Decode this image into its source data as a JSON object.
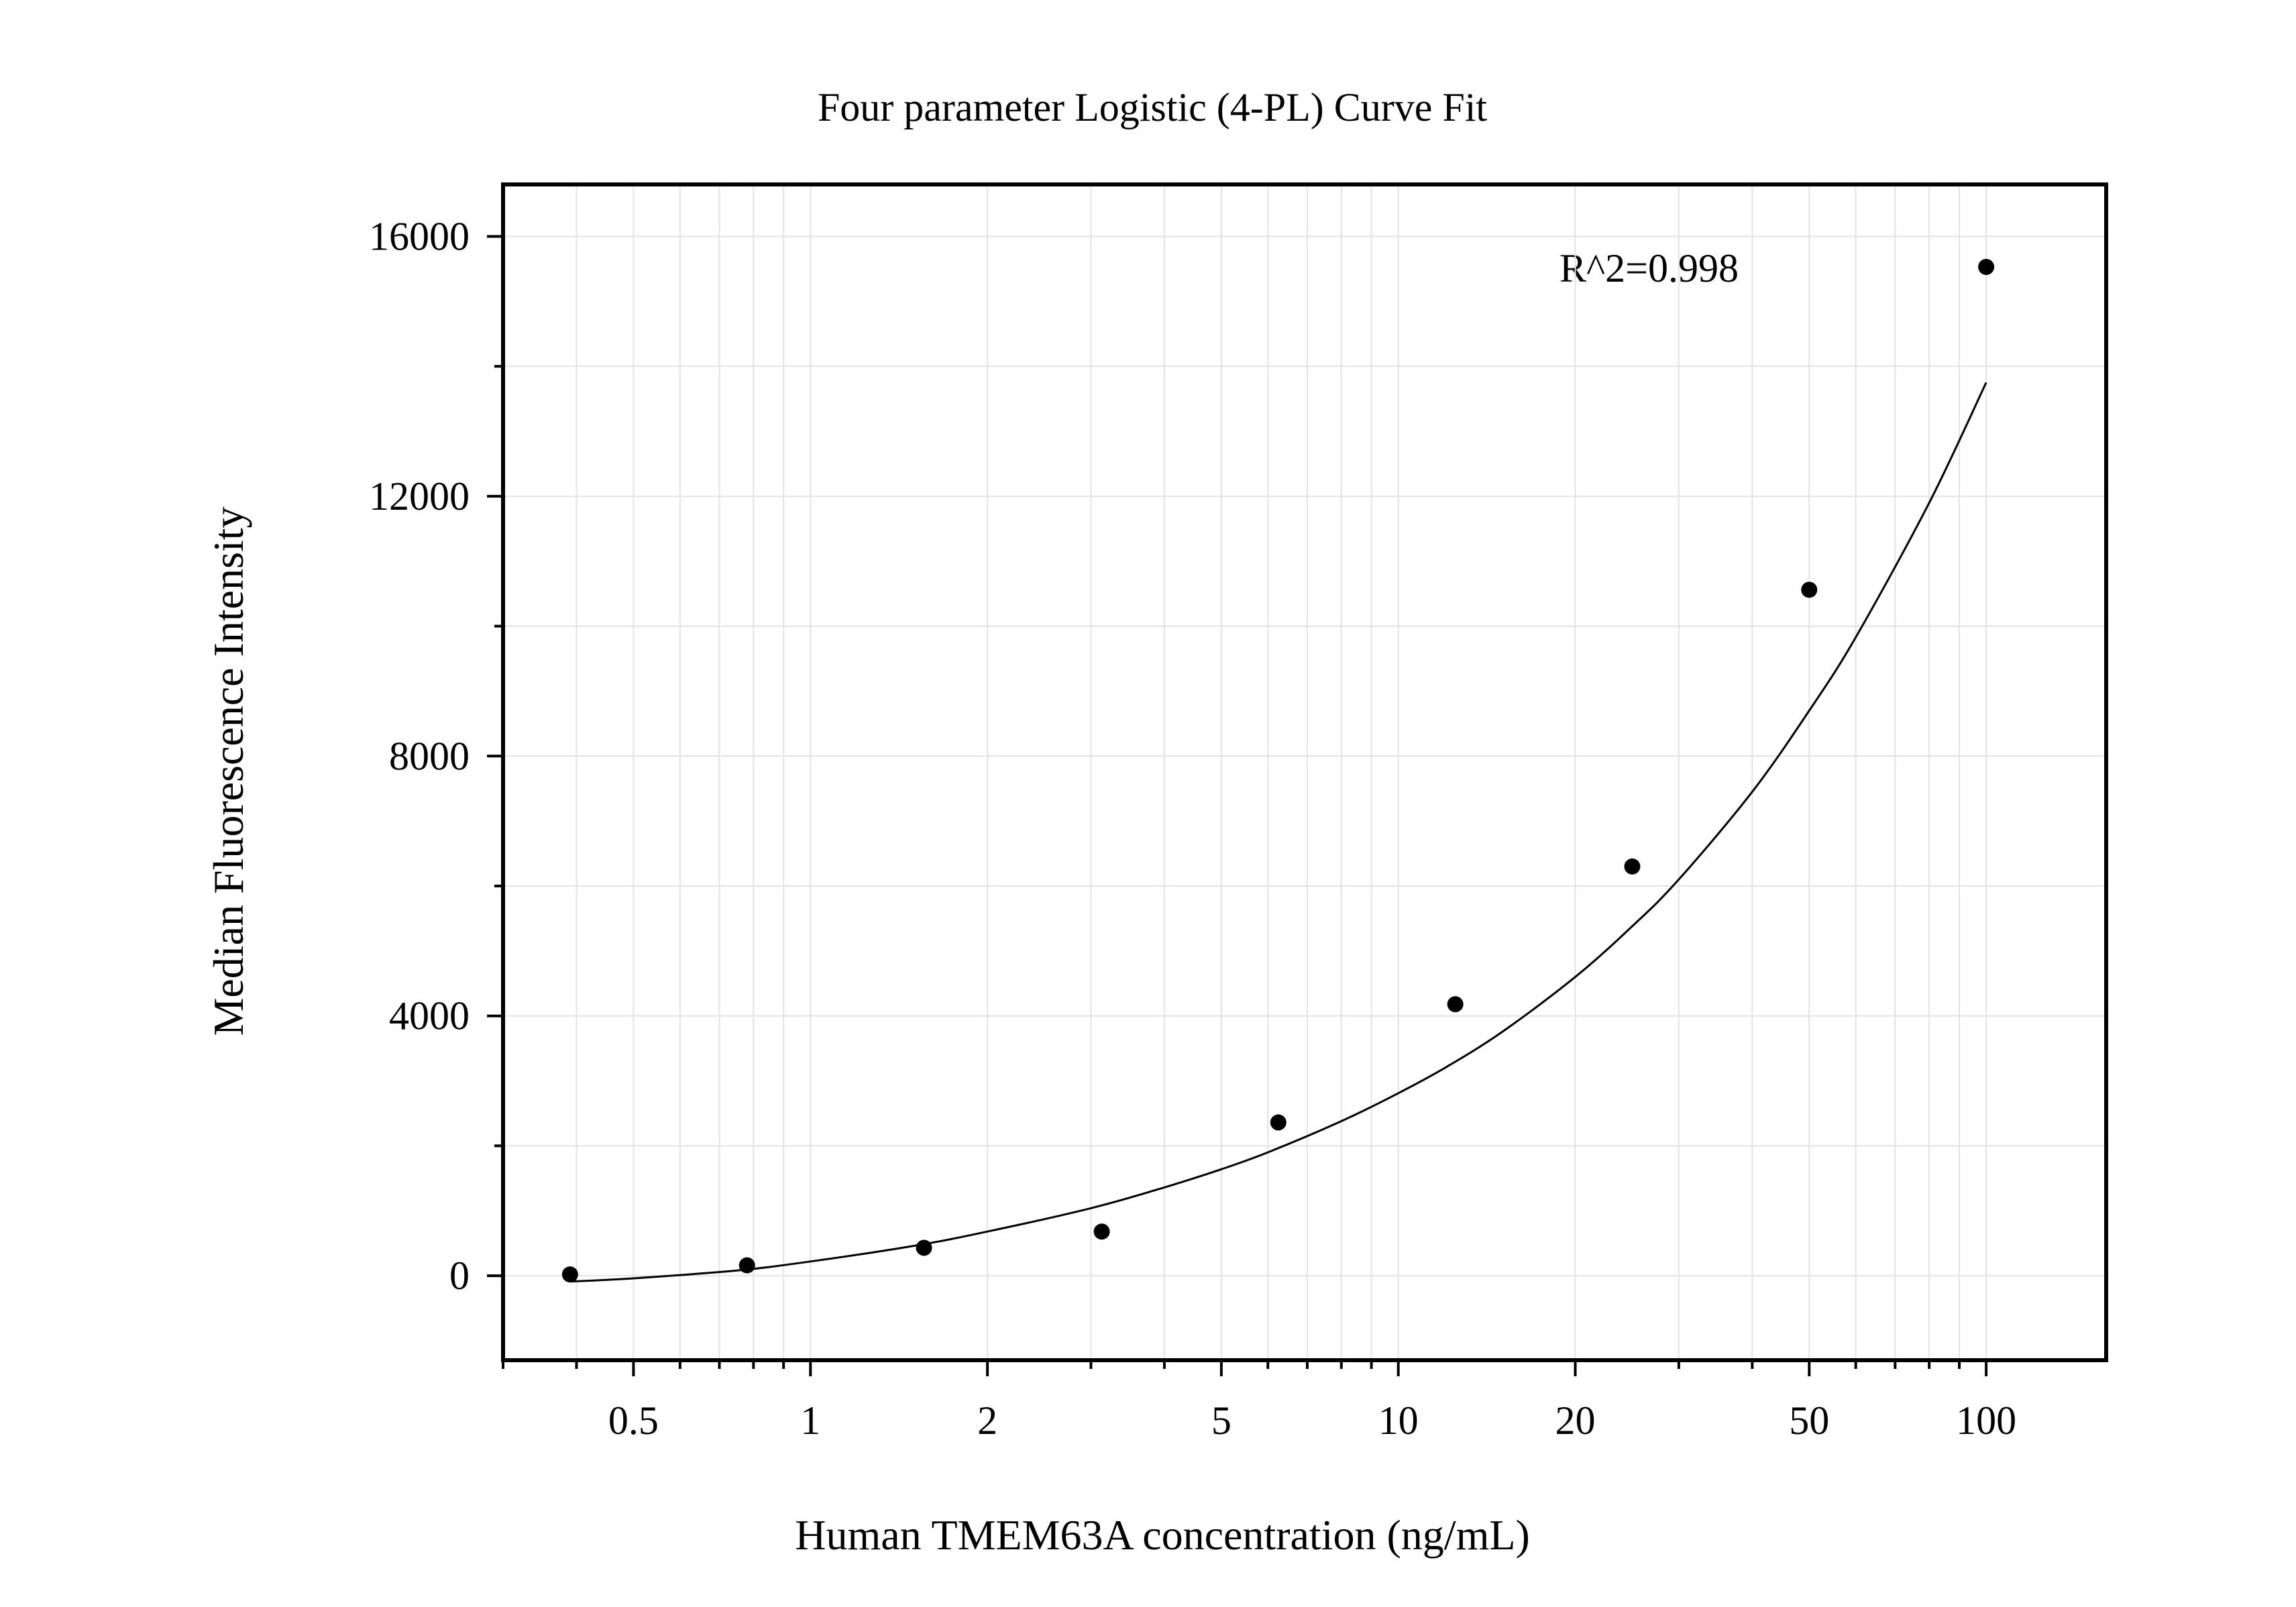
{
  "chart_data": {
    "type": "scatter",
    "title": "Four parameter Logistic (4-PL) Curve Fit",
    "xlabel": "Human TMEM63A concentration (ng/mL)",
    "ylabel": "Median Fluorescence Intensity",
    "x_scale": "log",
    "xlim": [
      0.3,
      160
    ],
    "ylim": [
      -1300,
      16800
    ],
    "x_ticks": [
      0.5,
      1,
      2,
      5,
      10,
      20,
      50,
      100
    ],
    "x_tick_labels": [
      "0.5",
      "1",
      "2",
      "5",
      "10",
      "20",
      "50",
      "100"
    ],
    "y_ticks": [
      0,
      4000,
      8000,
      12000,
      16000
    ],
    "y_tick_labels": [
      "0",
      "4000",
      "8000",
      "12000",
      "16000"
    ],
    "grid": true,
    "annotation": "R^2=0.998",
    "series": [
      {
        "type": "scatter",
        "x": [
          0.39,
          0.78,
          1.56,
          3.13,
          6.25,
          12.5,
          25,
          50,
          100
        ],
        "y": [
          20,
          160,
          430,
          680,
          2360,
          4180,
          6300,
          10560,
          15530
        ]
      },
      {
        "type": "line",
        "fit": "4-PL",
        "x": [
          0.39,
          0.5,
          0.75,
          1,
          1.5,
          2,
          3,
          4,
          5,
          6,
          8,
          10,
          12,
          15,
          20,
          25,
          30,
          40,
          50,
          60,
          80,
          100
        ],
        "y": [
          -90,
          -40,
          80,
          220,
          460,
          680,
          1040,
          1360,
          1640,
          1900,
          2380,
          2810,
          3200,
          3750,
          4600,
          5380,
          6100,
          7450,
          8700,
          9830,
          11900,
          13750
        ]
      }
    ],
    "colors": {
      "points": "#000000",
      "curve": "#000000",
      "frame": "#000000",
      "grid": "#e3e3e3"
    }
  }
}
